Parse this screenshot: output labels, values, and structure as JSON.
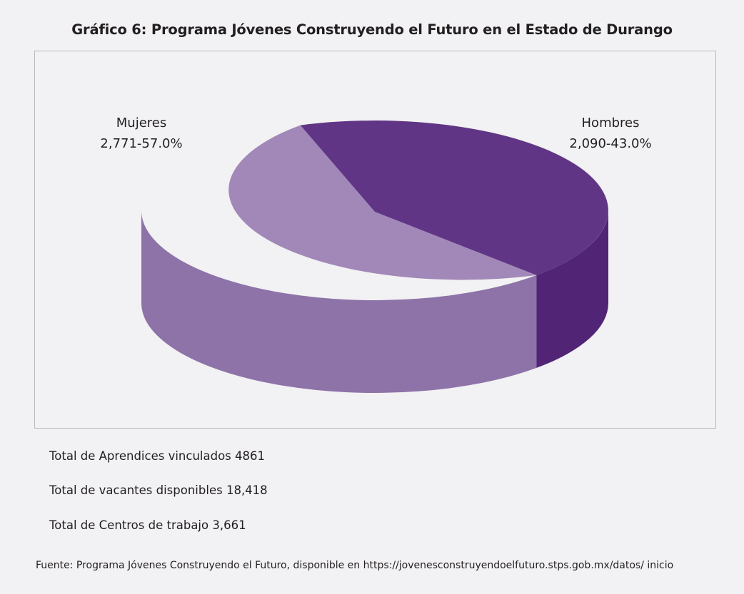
{
  "title": "Gráfico 6: Programa Jóvenes Construyendo el Futuro en el Estado de Durango",
  "stats": {
    "aprendices": "Total de Aprendices vinculados 4861",
    "vacantes": "Total de vacantes disponibles 18,418",
    "centros": "Total de Centros de trabajo 3,661"
  },
  "source": "Fuente: Programa Jóvenes Construyendo el Futuro, disponible en https://jovenesconstruyendoelfuturo.stps.gob.mx/datos/ inicio",
  "chart_data": {
    "type": "pie",
    "style": "3d",
    "title": "Gráfico 6: Programa Jóvenes Construyendo el Futuro en el Estado de Durango",
    "slices": [
      {
        "name": "Mujeres",
        "value": 2771,
        "percent": 57.0,
        "label": "2,771-57.0%",
        "color": "#a188b8",
        "side_color": "#8d73a8"
      },
      {
        "name": "Hombres",
        "value": 2090,
        "percent": 43.0,
        "label": "2,090-43.0%",
        "color": "#603585",
        "side_color": "#512476"
      }
    ],
    "legend": "none"
  }
}
